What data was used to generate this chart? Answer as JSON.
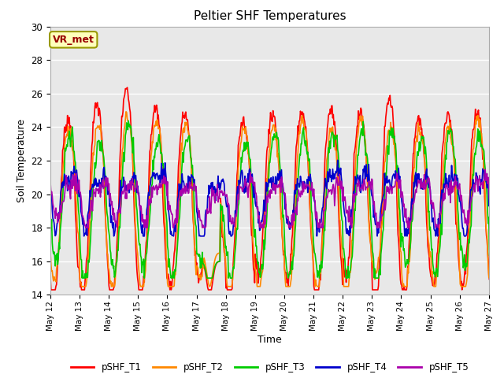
{
  "title": "Peltier SHF Temperatures",
  "xlabel": "Time",
  "ylabel": "Soil Temperature",
  "ylim": [
    14,
    30
  ],
  "yticks": [
    14,
    16,
    18,
    20,
    22,
    24,
    26,
    28,
    30
  ],
  "x_tick_labels": [
    "May 12",
    "May 13",
    "May 14",
    "May 15",
    "May 16",
    "May 17",
    "May 18",
    "May 19",
    "May 20",
    "May 21",
    "May 22",
    "May 23",
    "May 24",
    "May 25",
    "May 26",
    "May 27"
  ],
  "annotation_text": "VR_met",
  "background_color": "#e8e8e8",
  "series_colors": [
    "#ff0000",
    "#ff8800",
    "#00cc00",
    "#0000cc",
    "#aa00aa"
  ],
  "series_labels": [
    "pSHF_T1",
    "pSHF_T2",
    "pSHF_T3",
    "pSHF_T4",
    "pSHF_T5"
  ],
  "line_width": 1.2,
  "grid_color": "#ffffff",
  "fig_background": "#ffffff",
  "figsize": [
    6.4,
    4.8
  ],
  "dpi": 100
}
